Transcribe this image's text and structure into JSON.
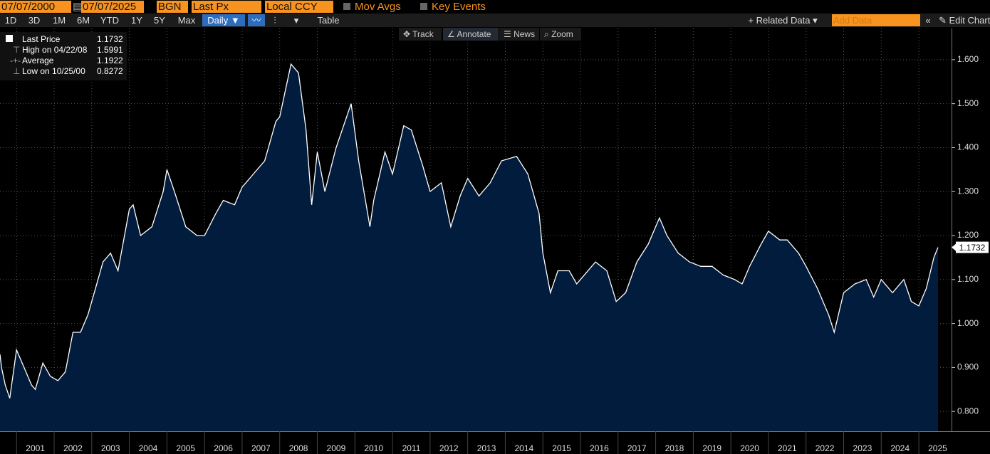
{
  "toolbar": {
    "start_date": "07/07/2000",
    "end_date": "07/07/2025",
    "source": "BGN",
    "field": "Last Px",
    "currency": "Local CCY",
    "mov_avgs": "Mov Avgs",
    "key_events": "Key Events",
    "periods": [
      "1D",
      "3D",
      "1M",
      "6M",
      "YTD",
      "1Y",
      "5Y",
      "Max"
    ],
    "frequency": "Daily",
    "table": "Table",
    "related": "Related Data",
    "add_data": "Add Data",
    "edit": "Edit Chart"
  },
  "chart_tools": [
    "Track",
    "Annotate",
    "News",
    "Zoom"
  ],
  "legend": [
    {
      "label": "Last Price",
      "value": 1.1732
    },
    {
      "label": "High on 04/22/08",
      "value": 1.5991
    },
    {
      "label": "Average",
      "value": 1.1922
    },
    {
      "label": "Low on 10/25/00",
      "value": 0.8272
    }
  ],
  "chart_data": {
    "type": "area",
    "color": "#ffffff",
    "fill": "#021c3e",
    "x": [
      2000.56,
      2000.6,
      2000.7,
      2000.82,
      2001.0,
      2001.2,
      2001.4,
      2001.5,
      2001.7,
      2001.9,
      2002.1,
      2002.3,
      2002.5,
      2002.7,
      2002.9,
      2003.1,
      2003.3,
      2003.5,
      2003.7,
      2004.0,
      2004.1,
      2004.3,
      2004.6,
      2004.9,
      2005.0,
      2005.2,
      2005.5,
      2005.8,
      2006.0,
      2006.3,
      2006.5,
      2006.8,
      2007.0,
      2007.3,
      2007.6,
      2007.9,
      2008.0,
      2008.3,
      2008.5,
      2008.7,
      2008.85,
      2009.0,
      2009.2,
      2009.5,
      2009.9,
      2010.1,
      2010.4,
      2010.5,
      2010.8,
      2011.0,
      2011.3,
      2011.5,
      2011.8,
      2012.0,
      2012.3,
      2012.55,
      2012.8,
      2013.0,
      2013.3,
      2013.6,
      2013.9,
      2014.3,
      2014.6,
      2014.9,
      2015.0,
      2015.2,
      2015.4,
      2015.7,
      2015.9,
      2016.1,
      2016.4,
      2016.7,
      2016.95,
      2017.2,
      2017.5,
      2017.8,
      2018.1,
      2018.3,
      2018.6,
      2018.9,
      2019.2,
      2019.5,
      2019.8,
      2020.1,
      2020.3,
      2020.5,
      2020.8,
      2021.0,
      2021.3,
      2021.5,
      2021.8,
      2022.0,
      2022.3,
      2022.6,
      2022.75,
      2023.0,
      2023.3,
      2023.6,
      2023.8,
      2024.0,
      2024.3,
      2024.6,
      2024.8,
      2025.0,
      2025.2,
      2025.4,
      2025.51
    ],
    "values": [
      0.93,
      0.9,
      0.86,
      0.83,
      0.94,
      0.9,
      0.86,
      0.85,
      0.91,
      0.88,
      0.87,
      0.89,
      0.98,
      0.98,
      1.02,
      1.08,
      1.14,
      1.16,
      1.12,
      1.26,
      1.27,
      1.2,
      1.22,
      1.3,
      1.35,
      1.3,
      1.22,
      1.2,
      1.2,
      1.25,
      1.28,
      1.27,
      1.31,
      1.34,
      1.37,
      1.46,
      1.47,
      1.59,
      1.57,
      1.44,
      1.27,
      1.39,
      1.3,
      1.4,
      1.5,
      1.37,
      1.22,
      1.28,
      1.39,
      1.34,
      1.45,
      1.44,
      1.36,
      1.3,
      1.32,
      1.22,
      1.29,
      1.33,
      1.29,
      1.32,
      1.37,
      1.38,
      1.34,
      1.25,
      1.16,
      1.07,
      1.12,
      1.12,
      1.09,
      1.11,
      1.14,
      1.12,
      1.05,
      1.07,
      1.14,
      1.18,
      1.24,
      1.2,
      1.16,
      1.14,
      1.13,
      1.13,
      1.11,
      1.1,
      1.09,
      1.13,
      1.18,
      1.21,
      1.19,
      1.19,
      1.16,
      1.13,
      1.08,
      1.02,
      0.98,
      1.07,
      1.09,
      1.1,
      1.06,
      1.1,
      1.07,
      1.1,
      1.05,
      1.04,
      1.08,
      1.15,
      1.1732
    ],
    "xlim": [
      2000.56,
      2025.87
    ],
    "ylim": [
      0.755,
      1.671
    ],
    "xticks": [
      2001,
      2002,
      2003,
      2004,
      2005,
      2006,
      2007,
      2008,
      2009,
      2010,
      2011,
      2012,
      2013,
      2014,
      2015,
      2016,
      2017,
      2018,
      2019,
      2020,
      2021,
      2022,
      2023,
      2024,
      2025
    ],
    "yticks": [
      {
        "value": 0.8,
        "label": "0.800"
      },
      {
        "value": 0.9,
        "label": "0.900"
      },
      {
        "value": 1.0,
        "label": "1.000"
      },
      {
        "value": 1.1,
        "label": "1.100"
      },
      {
        "value": 1.2,
        "label": "1.200"
      },
      {
        "value": 1.3,
        "label": "1.300"
      },
      {
        "value": 1.4,
        "label": "1.400"
      },
      {
        "value": 1.5,
        "label": "1.500"
      },
      {
        "value": 1.6,
        "label": "1.600"
      }
    ],
    "grid": true
  }
}
